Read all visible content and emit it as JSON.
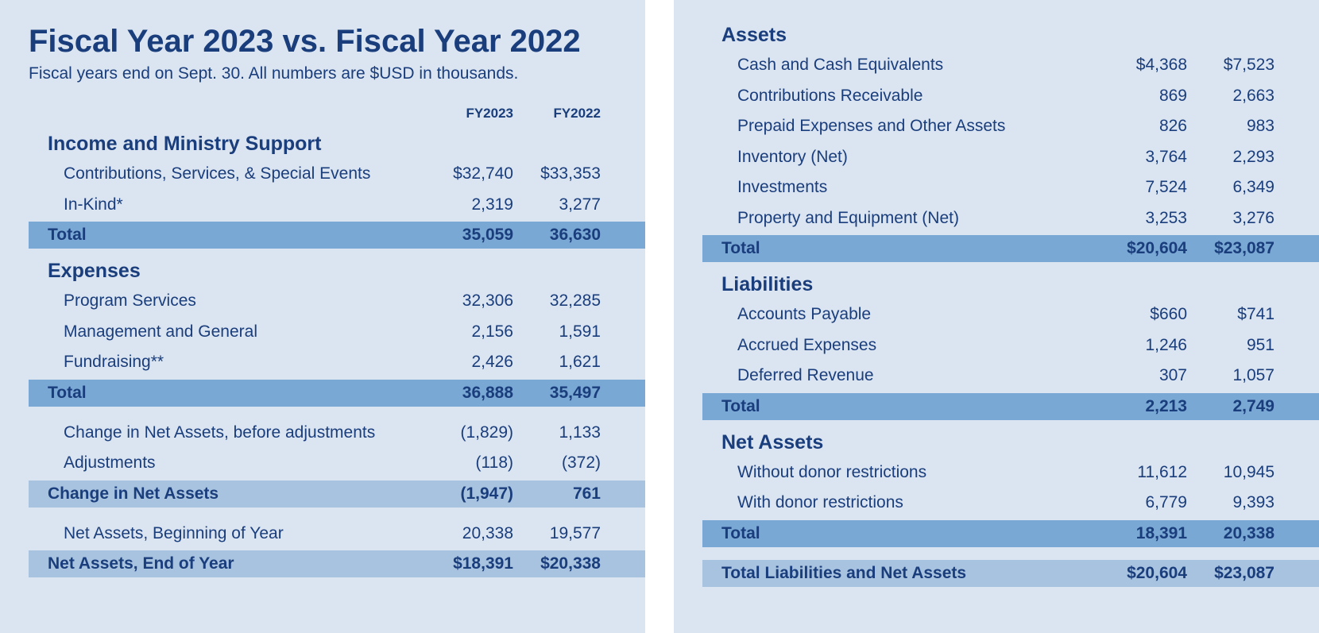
{
  "title": "Fiscal Year 2023 vs. Fiscal Year 2022",
  "subtitle": "Fiscal years end on Sept. 30. All numbers are $USD in thousands.",
  "col1": "FY2023",
  "col2": "FY2022",
  "left": {
    "income": {
      "title": "Income and Ministry Support",
      "rows": [
        {
          "label": "Contributions, Services, & Special Events",
          "v1": "$32,740",
          "v2": "$33,353"
        },
        {
          "label": "In-Kind*",
          "v1": "2,319",
          "v2": "3,277"
        }
      ],
      "total": {
        "label": "Total",
        "v1": "35,059",
        "v2": "36,630"
      }
    },
    "expenses": {
      "title": "Expenses",
      "rows": [
        {
          "label": "Program Services",
          "v1": "32,306",
          "v2": "32,285"
        },
        {
          "label": "Management and General",
          "v1": "2,156",
          "v2": "1,591"
        },
        {
          "label": "Fundraising**",
          "v1": "2,426",
          "v2": "1,621"
        }
      ],
      "total": {
        "label": "Total",
        "v1": "36,888",
        "v2": "35,497"
      }
    },
    "change": {
      "rows": [
        {
          "label": "Change in Net Assets, before adjustments",
          "v1": "(1,829)",
          "v2": "1,133"
        },
        {
          "label": "Adjustments",
          "v1": "(118)",
          "v2": "(372)"
        }
      ],
      "total": {
        "label": "Change in Net Assets",
        "v1": "(1,947)",
        "v2": "761"
      }
    },
    "netassets": {
      "rows": [
        {
          "label": "Net Assets, Beginning of Year",
          "v1": "20,338",
          "v2": "19,577"
        }
      ],
      "total": {
        "label": "Net Assets, End of Year",
        "v1": "$18,391",
        "v2": "$20,338"
      }
    }
  },
  "right": {
    "assets": {
      "title": "Assets",
      "rows": [
        {
          "label": "Cash and Cash Equivalents",
          "v1": "$4,368",
          "v2": "$7,523"
        },
        {
          "label": "Contributions Receivable",
          "v1": "869",
          "v2": "2,663"
        },
        {
          "label": "Prepaid Expenses and Other Assets",
          "v1": "826",
          "v2": "983"
        },
        {
          "label": "Inventory (Net)",
          "v1": "3,764",
          "v2": "2,293"
        },
        {
          "label": "Investments",
          "v1": "7,524",
          "v2": "6,349"
        },
        {
          "label": "Property and Equipment (Net)",
          "v1": "3,253",
          "v2": "3,276"
        }
      ],
      "total": {
        "label": "Total",
        "v1": "$20,604",
        "v2": "$23,087"
      }
    },
    "liabilities": {
      "title": "Liabilities",
      "rows": [
        {
          "label": "Accounts Payable",
          "v1": "$660",
          "v2": "$741"
        },
        {
          "label": "Accrued Expenses",
          "v1": "1,246",
          "v2": "951"
        },
        {
          "label": "Deferred Revenue",
          "v1": "307",
          "v2": "1,057"
        }
      ],
      "total": {
        "label": "Total",
        "v1": "2,213",
        "v2": "2,749"
      }
    },
    "netassets": {
      "title": "Net Assets",
      "rows": [
        {
          "label": "Without donor restrictions",
          "v1": "11,612",
          "v2": "10,945"
        },
        {
          "label": "With donor restrictions",
          "v1": "6,779",
          "v2": "9,393"
        }
      ],
      "total": {
        "label": "Total",
        "v1": "18,391",
        "v2": "20,338"
      }
    },
    "grand": {
      "label": "Total Liabilities and Net Assets",
      "v1": "$20,604",
      "v2": "$23,087"
    }
  }
}
